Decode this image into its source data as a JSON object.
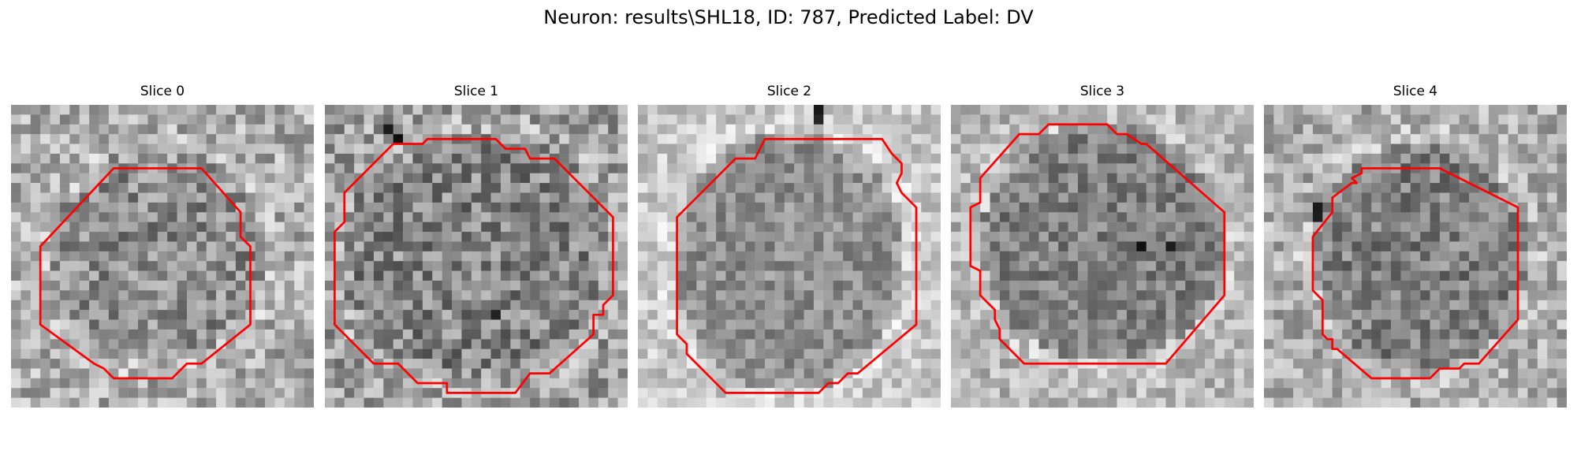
{
  "figure": {
    "title": "Neuron: results\\SHL18, ID: 787, Predicted Label: DV"
  },
  "colors": {
    "contour": "#ff0000",
    "background": "#ffffff"
  },
  "panels": [
    {
      "title": "Slice 0"
    },
    {
      "title": "Slice 1"
    },
    {
      "title": "Slice 2"
    },
    {
      "title": "Slice 3"
    },
    {
      "title": "Slice 4"
    }
  ]
}
